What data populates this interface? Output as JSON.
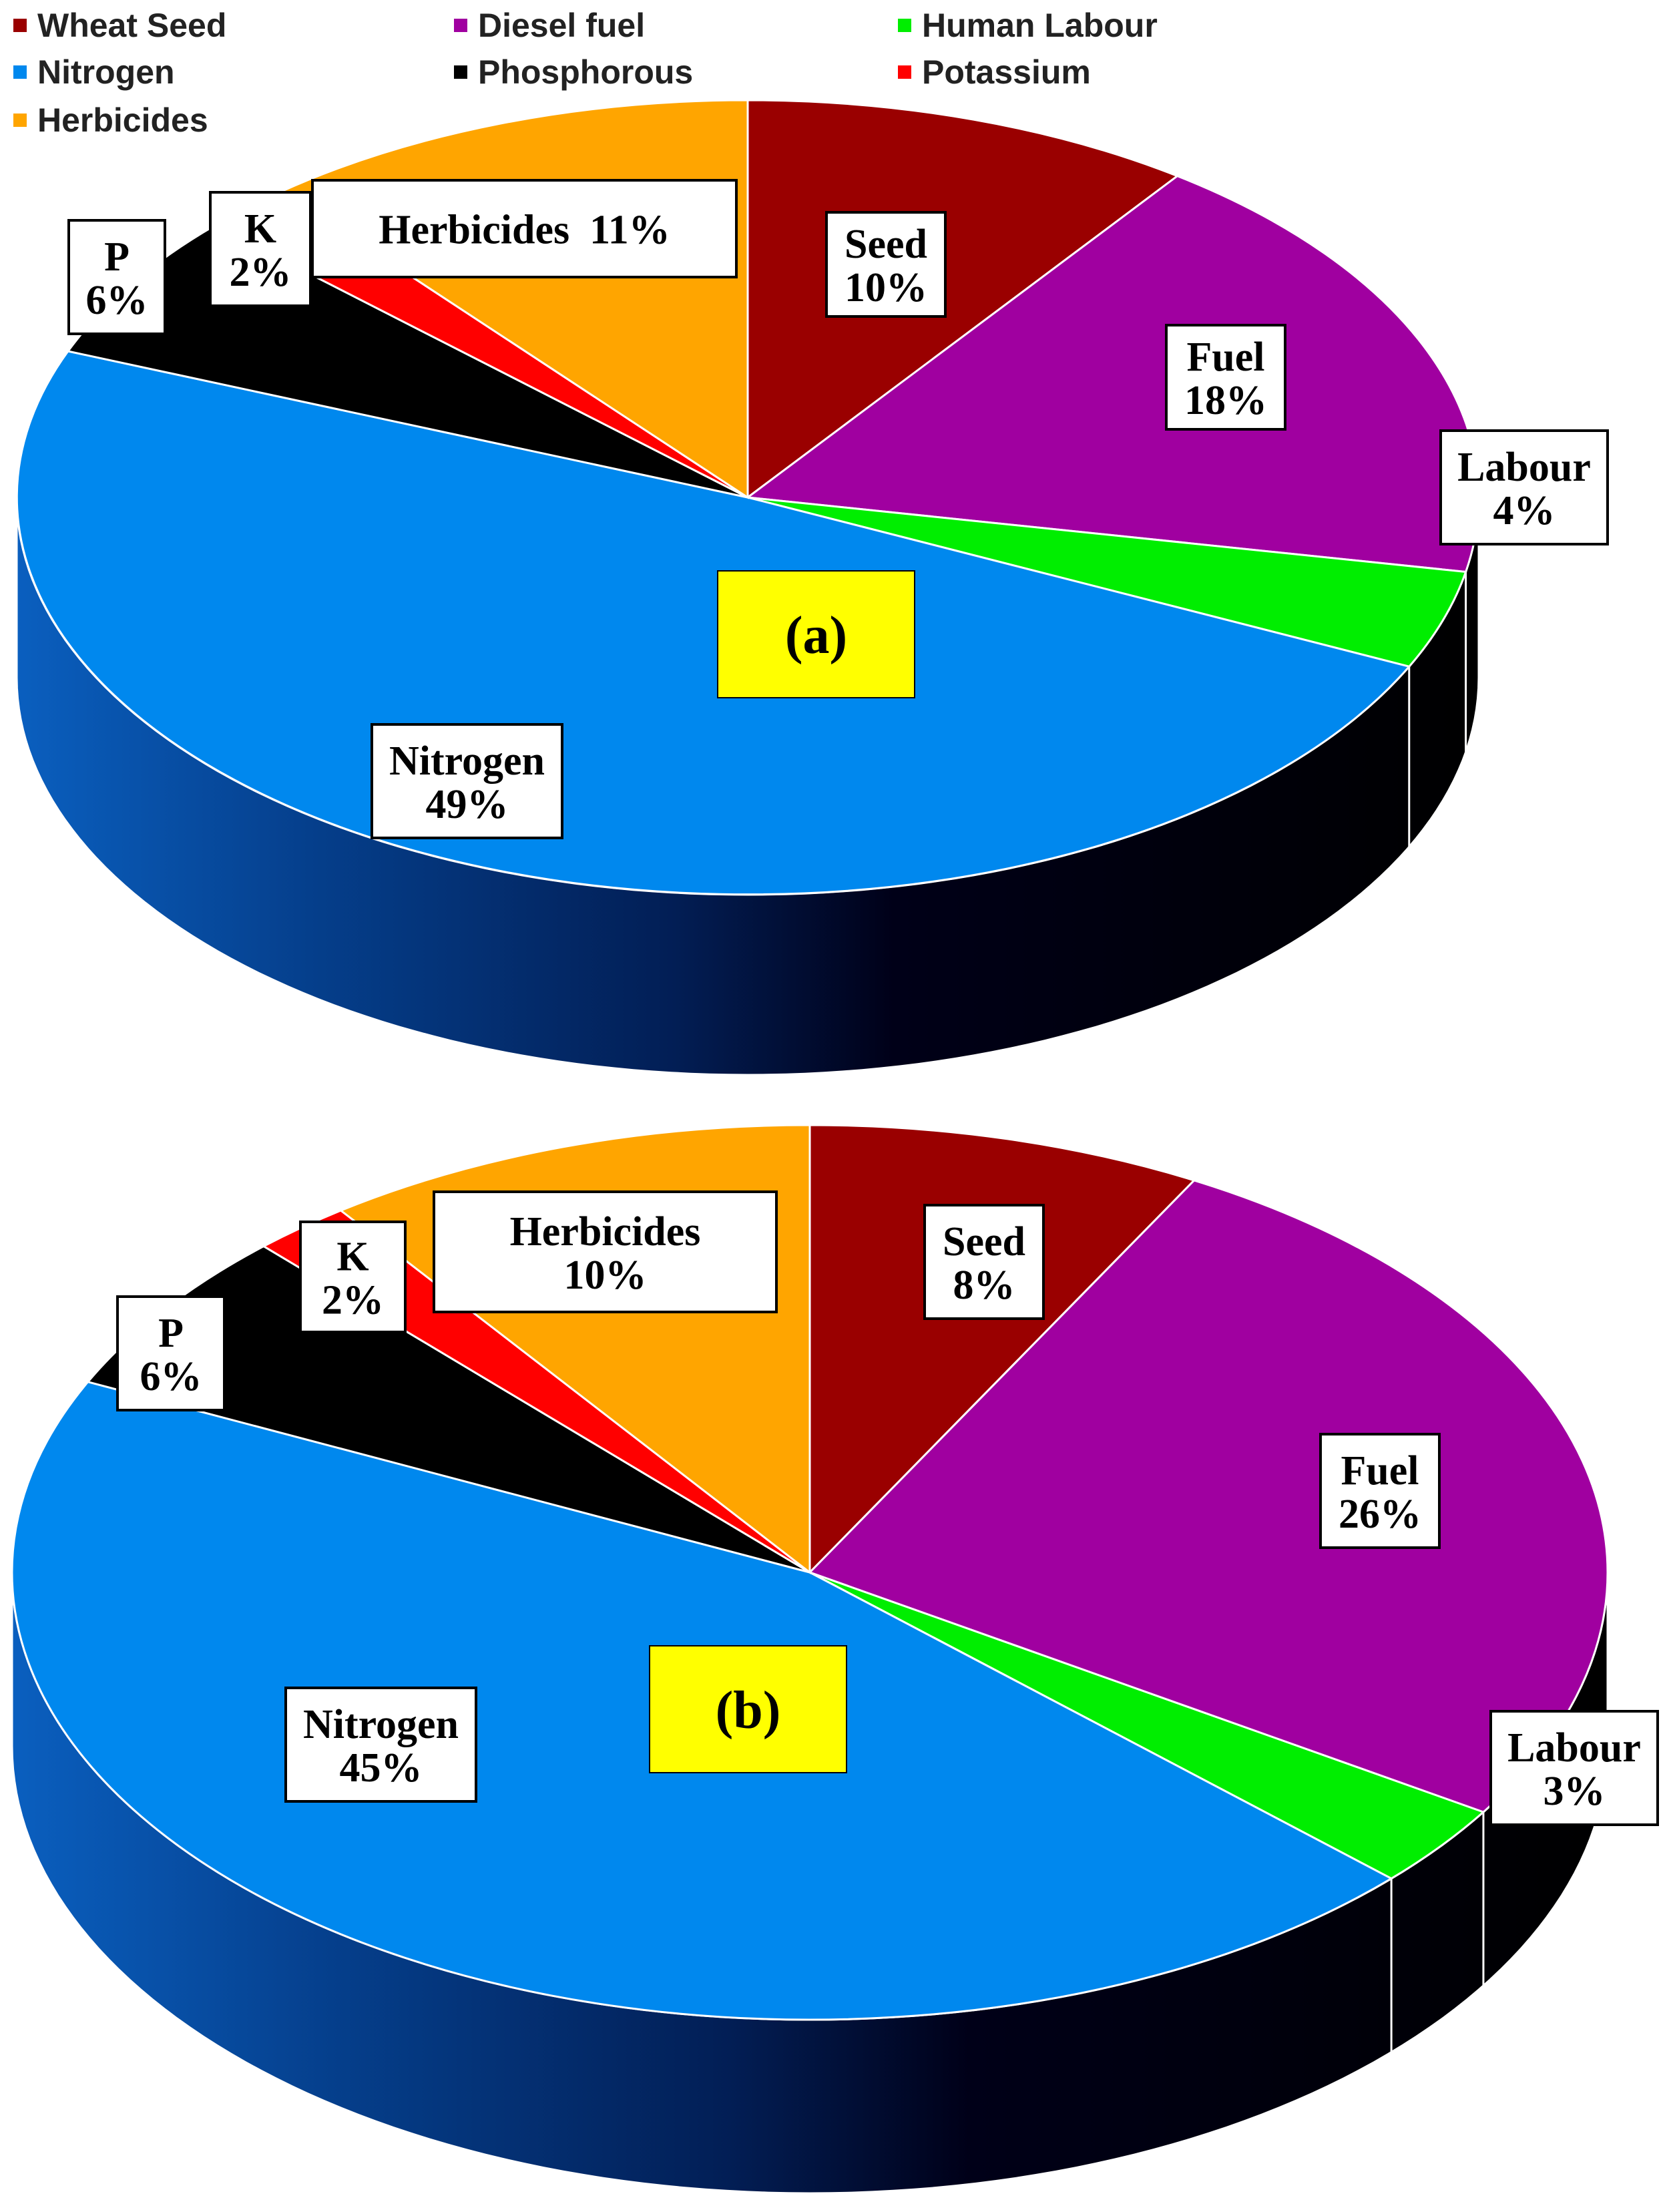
{
  "legend": [
    {
      "name": "Wheat Seed",
      "color": "#9a0000"
    },
    {
      "name": "Diesel fuel",
      "color": "#a000a0"
    },
    {
      "name": "Human Labour",
      "color": "#00ee00"
    },
    {
      "name": "Nitrogen",
      "color": "#0088ee"
    },
    {
      "name": "Phosphorous",
      "color": "#000000"
    },
    {
      "name": "Potassium",
      "color": "#ff0000"
    },
    {
      "name": "Herbicides",
      "color": "#ffa500"
    }
  ],
  "chart_data": [
    {
      "type": "pie",
      "style": "3d-exploded-none",
      "panel_label": "(a)",
      "slices": [
        {
          "series": "Wheat Seed",
          "label": "Seed",
          "value": 10,
          "value_text": "10%"
        },
        {
          "series": "Diesel fuel",
          "label": "Fuel",
          "value": 18,
          "value_text": "18%"
        },
        {
          "series": "Human Labour",
          "label": "Labour",
          "value": 4,
          "value_text": "4%"
        },
        {
          "series": "Nitrogen",
          "label": "Nitrogen",
          "value": 49,
          "value_text": "49%"
        },
        {
          "series": "Phosphorous",
          "label": "P",
          "value": 6,
          "value_text": "6%"
        },
        {
          "series": "Potassium",
          "label": "K",
          "value": 2,
          "value_text": "2%"
        },
        {
          "series": "Herbicides",
          "label": "Herbicides",
          "value": 11,
          "value_text": "11%"
        }
      ]
    },
    {
      "type": "pie",
      "style": "3d-exploded-none",
      "panel_label": "(b)",
      "slices": [
        {
          "series": "Wheat Seed",
          "label": "Seed",
          "value": 8,
          "value_text": "8%"
        },
        {
          "series": "Diesel fuel",
          "label": "Fuel",
          "value": 26,
          "value_text": "26%"
        },
        {
          "series": "Human Labour",
          "label": "Labour",
          "value": 3,
          "value_text": "3%"
        },
        {
          "series": "Nitrogen",
          "label": "Nitrogen",
          "value": 45,
          "value_text": "45%"
        },
        {
          "series": "Phosphorous",
          "label": "P",
          "value": 6,
          "value_text": "6%"
        },
        {
          "series": "Potassium",
          "label": "K",
          "value": 2,
          "value_text": "2%"
        },
        {
          "series": "Herbicides",
          "label": "Herbicides",
          "value": 10,
          "value_text": "10%"
        }
      ]
    }
  ]
}
